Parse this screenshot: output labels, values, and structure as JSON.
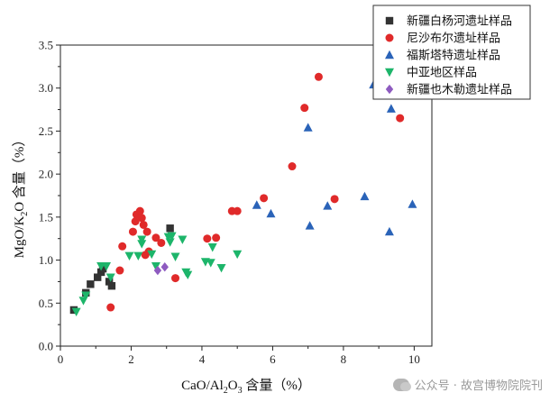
{
  "chart_data": {
    "type": "scatter",
    "title": "",
    "xlabel": {
      "prefix": "CaO/Al",
      "sub1": "2",
      "mid": "O",
      "sub2": "3",
      "suffix": " 含量（%）"
    },
    "ylabel": {
      "prefix": "MgO/K",
      "sub1": "2",
      "suffix": "O 含量（%）"
    },
    "xlim": [
      0,
      10.5
    ],
    "ylim": [
      0,
      3.5
    ],
    "xticks": [
      0,
      2,
      4,
      6,
      8,
      10
    ],
    "yticks": [
      0.0,
      0.5,
      1.0,
      1.5,
      2.0,
      2.5,
      3.0,
      3.5
    ],
    "xtick_labels": [
      "0",
      "2",
      "4",
      "6",
      "8",
      "10"
    ],
    "ytick_labels": [
      "0.0",
      "0.5",
      "1.0",
      "1.5",
      "2.0",
      "2.5",
      "3.0",
      "3.5"
    ],
    "legend_position": "top-right",
    "series": [
      {
        "name": "新疆白杨河遗址样品",
        "marker": "square",
        "color": "#333333",
        "x": [
          0.38,
          0.72,
          0.85,
          1.05,
          1.15,
          1.2,
          1.38,
          1.45,
          3.1
        ],
        "y": [
          0.42,
          0.62,
          0.72,
          0.8,
          0.86,
          0.9,
          0.75,
          0.7,
          1.37
        ]
      },
      {
        "name": "尼沙布尔遗址样品",
        "marker": "circle",
        "color": "#e02a2a",
        "x": [
          1.42,
          1.68,
          1.75,
          2.05,
          2.12,
          2.15,
          2.25,
          2.3,
          2.35,
          2.4,
          2.5,
          2.45,
          2.7,
          2.85,
          3.25,
          4.15,
          4.4,
          4.85,
          5.0,
          5.75,
          6.55,
          6.9,
          7.3,
          7.75,
          9.6
        ],
        "y": [
          0.45,
          0.88,
          1.16,
          1.33,
          1.45,
          1.53,
          1.57,
          1.49,
          1.41,
          1.06,
          1.1,
          1.33,
          1.26,
          1.2,
          0.79,
          1.25,
          1.26,
          1.57,
          1.57,
          1.72,
          2.09,
          2.77,
          3.13,
          1.71,
          2.65
        ]
      },
      {
        "name": "福斯塔特遗址样品",
        "marker": "triangle-up",
        "color": "#2a63b8",
        "x": [
          5.55,
          5.95,
          7.0,
          7.05,
          7.55,
          8.6,
          8.85,
          9.3,
          9.35,
          9.95
        ],
        "y": [
          1.64,
          1.54,
          2.54,
          1.4,
          1.63,
          1.74,
          3.04,
          1.33,
          2.76,
          1.65
        ]
      },
      {
        "name": "中亚地区样品",
        "marker": "triangle-down",
        "color": "#1db56a",
        "x": [
          0.45,
          0.65,
          0.72,
          1.15,
          1.3,
          1.42,
          1.95,
          2.2,
          2.3,
          2.3,
          2.58,
          2.7,
          3.05,
          3.1,
          3.15,
          3.25,
          3.45,
          3.55,
          3.6,
          4.1,
          4.25,
          4.3,
          4.55,
          5.0
        ],
        "y": [
          0.4,
          0.53,
          0.59,
          0.93,
          0.93,
          0.8,
          1.05,
          1.05,
          1.19,
          1.24,
          1.07,
          0.93,
          1.27,
          1.21,
          1.28,
          1.04,
          1.24,
          0.86,
          0.83,
          0.98,
          0.97,
          1.15,
          0.91,
          1.07
        ]
      },
      {
        "name": "新疆也木勒遗址样品",
        "marker": "diamond",
        "color": "#8e5bc0",
        "x": [
          2.75,
          2.95
        ],
        "y": [
          0.88,
          0.92
        ]
      }
    ]
  },
  "watermark": {
    "text": "公众号 · 故宫博物院院刊"
  }
}
